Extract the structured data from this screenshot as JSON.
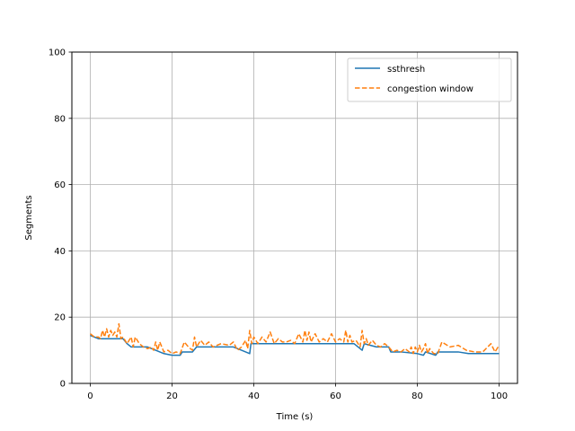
{
  "chart_data": {
    "type": "line",
    "title": "",
    "xlabel": "Time (s)",
    "ylabel": "Segments",
    "xlim": [
      -4.5,
      104.5
    ],
    "ylim": [
      0,
      100
    ],
    "xticks": [
      0,
      20,
      40,
      60,
      80,
      100
    ],
    "yticks": [
      0,
      20,
      40,
      60,
      80,
      100
    ],
    "grid": true,
    "legend_position": "top-right",
    "series": [
      {
        "name": "ssthresh",
        "color": "#1f77b4",
        "style": "solid",
        "x": [
          0,
          2,
          5,
          8,
          9,
          10,
          14,
          16,
          18,
          20,
          22,
          22.5,
          25,
          26,
          30,
          35,
          37,
          39,
          39.3,
          42,
          45,
          50,
          55,
          60,
          63,
          64.5,
          66.5,
          67,
          70,
          73,
          73.5,
          76,
          80,
          81.5,
          82,
          84.5,
          85,
          90,
          92.5,
          95,
          100
        ],
        "y": [
          14.5,
          13.5,
          13.5,
          13.5,
          12,
          11,
          11,
          10,
          9,
          8.5,
          8.5,
          9.5,
          9.5,
          11,
          11,
          11,
          10,
          9,
          12,
          12,
          12,
          12,
          12,
          12,
          12,
          12,
          10,
          12,
          11,
          11,
          9.5,
          9.5,
          9,
          8.5,
          9.5,
          8.5,
          9.5,
          9.5,
          9,
          9,
          9
        ]
      },
      {
        "name": "congestion window",
        "color": "#ff7f0e",
        "style": "dashed",
        "x": [
          0,
          1,
          2,
          2.5,
          3,
          3.5,
          4,
          4.5,
          5,
          5.5,
          6,
          6.5,
          7,
          7.5,
          8,
          9,
          10,
          10.5,
          11,
          12,
          13,
          14,
          15,
          15.5,
          16,
          16.5,
          17,
          18,
          19,
          20,
          21,
          22,
          23,
          24,
          25,
          25.5,
          26,
          27,
          28,
          29,
          30,
          32,
          34,
          35,
          36,
          37,
          38,
          38.5,
          39,
          39.5,
          40,
          41,
          42,
          43,
          44,
          45,
          46,
          47,
          48,
          49,
          50,
          51,
          52,
          52.5,
          53,
          53.5,
          54,
          55,
          56,
          57,
          58,
          59,
          60,
          61,
          62,
          62.5,
          63,
          63.5,
          64,
          65,
          66,
          66.5,
          67,
          67.5,
          68,
          69,
          70,
          71,
          72,
          73,
          74,
          75,
          76,
          77,
          78,
          78.5,
          79,
          79.5,
          80,
          80.5,
          81,
          81.5,
          82,
          82.5,
          83,
          84,
          85,
          86,
          88,
          90,
          92,
          94,
          96,
          98,
          99,
          100
        ],
        "y": [
          15,
          14,
          14,
          13.5,
          16,
          14,
          16.5,
          14,
          16,
          14.5,
          15.5,
          14,
          18,
          13.5,
          14,
          12,
          14,
          11,
          14,
          12,
          11,
          10.5,
          11,
          10,
          12.5,
          10,
          12.5,
          9.5,
          10,
          9,
          9.5,
          9,
          12.5,
          11,
          10,
          14,
          11,
          13,
          11.5,
          12.5,
          11,
          12,
          11.5,
          12.5,
          10,
          11,
          13,
          10.5,
          16,
          12,
          14,
          12,
          14,
          12.5,
          15.5,
          12,
          13.5,
          12.5,
          12.5,
          13,
          12,
          15,
          12.5,
          16,
          13,
          15.5,
          12.5,
          15,
          12.5,
          13.5,
          12.5,
          15,
          12.5,
          13.5,
          12.5,
          16,
          12.5,
          14.5,
          12.5,
          13,
          11,
          16,
          12,
          13.5,
          11.5,
          13,
          11.5,
          11,
          12,
          11,
          9.5,
          10,
          9.5,
          10.5,
          9.5,
          11,
          9,
          11,
          9.5,
          11.5,
          9.5,
          10.5,
          12,
          9,
          10.5,
          9,
          9,
          12.5,
          11,
          11.5,
          10,
          9.5,
          9.5,
          12,
          9.5,
          11.5
        ]
      }
    ]
  }
}
